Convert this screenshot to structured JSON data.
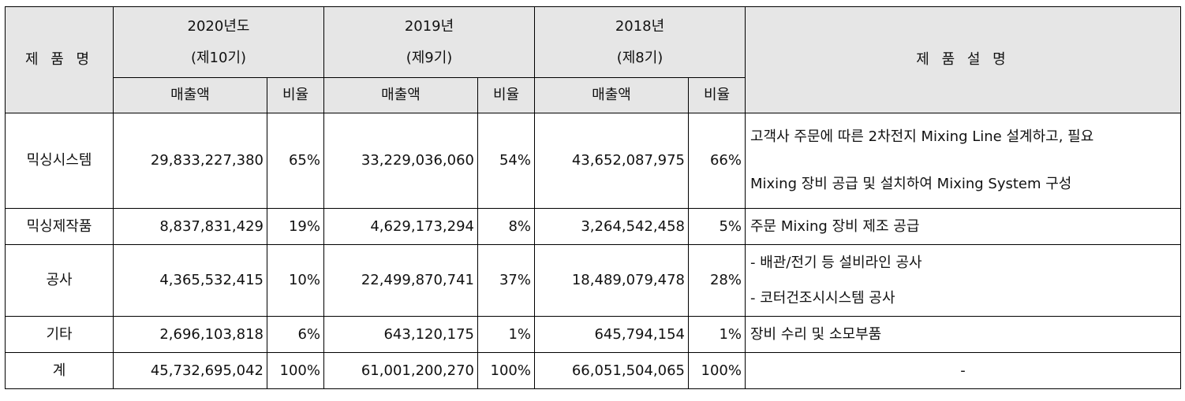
{
  "header": {
    "product_name": "제 품 명",
    "description": "제 품 설 명",
    "years": [
      {
        "year": "2020년도",
        "term": "(제10기)"
      },
      {
        "year": "2019년",
        "term": "(제9기)"
      },
      {
        "year": "2018년",
        "term": "(제8기)"
      }
    ],
    "sales_label": "매출액",
    "ratio_label": "비율"
  },
  "rows": [
    {
      "name": "믹싱시스템",
      "cells": [
        {
          "sales": "29,833,227,380",
          "ratio": "65%"
        },
        {
          "sales": "33,229,036,060",
          "ratio": "54%"
        },
        {
          "sales": "43,652,087,975",
          "ratio": "66%"
        }
      ],
      "desc": [
        "고객사 주문에 따른 2차전지 Mixing Line 설계하고, 필요",
        "Mixing 장비 공급 및 설치하여 Mixing System 구성"
      ]
    },
    {
      "name": "믹싱제작품",
      "cells": [
        {
          "sales": "8,837,831,429",
          "ratio": "19%"
        },
        {
          "sales": "4,629,173,294",
          "ratio": "8%"
        },
        {
          "sales": "3,264,542,458",
          "ratio": "5%"
        }
      ],
      "desc": [
        "주문 Mixing 장비 제조 공급"
      ]
    },
    {
      "name": "공사",
      "cells": [
        {
          "sales": "4,365,532,415",
          "ratio": "10%"
        },
        {
          "sales": "22,499,870,741",
          "ratio": "37%"
        },
        {
          "sales": "18,489,079,478",
          "ratio": "28%"
        }
      ],
      "desc": [
        "- 배관/전기 등 설비라인 공사",
        "- 코터건조시시스템 공사"
      ]
    },
    {
      "name": "기타",
      "cells": [
        {
          "sales": "2,696,103,818",
          "ratio": "6%"
        },
        {
          "sales": "643,120,175",
          "ratio": "1%"
        },
        {
          "sales": "645,794,154",
          "ratio": "1%"
        }
      ],
      "desc": [
        "장비 수리 및 소모부품"
      ]
    },
    {
      "name": "계",
      "cells": [
        {
          "sales": "45,732,695,042",
          "ratio": "100%"
        },
        {
          "sales": "61,001,200,270",
          "ratio": "100%"
        },
        {
          "sales": "66,051,504,065",
          "ratio": "100%"
        }
      ],
      "desc": [
        "-"
      ]
    }
  ]
}
